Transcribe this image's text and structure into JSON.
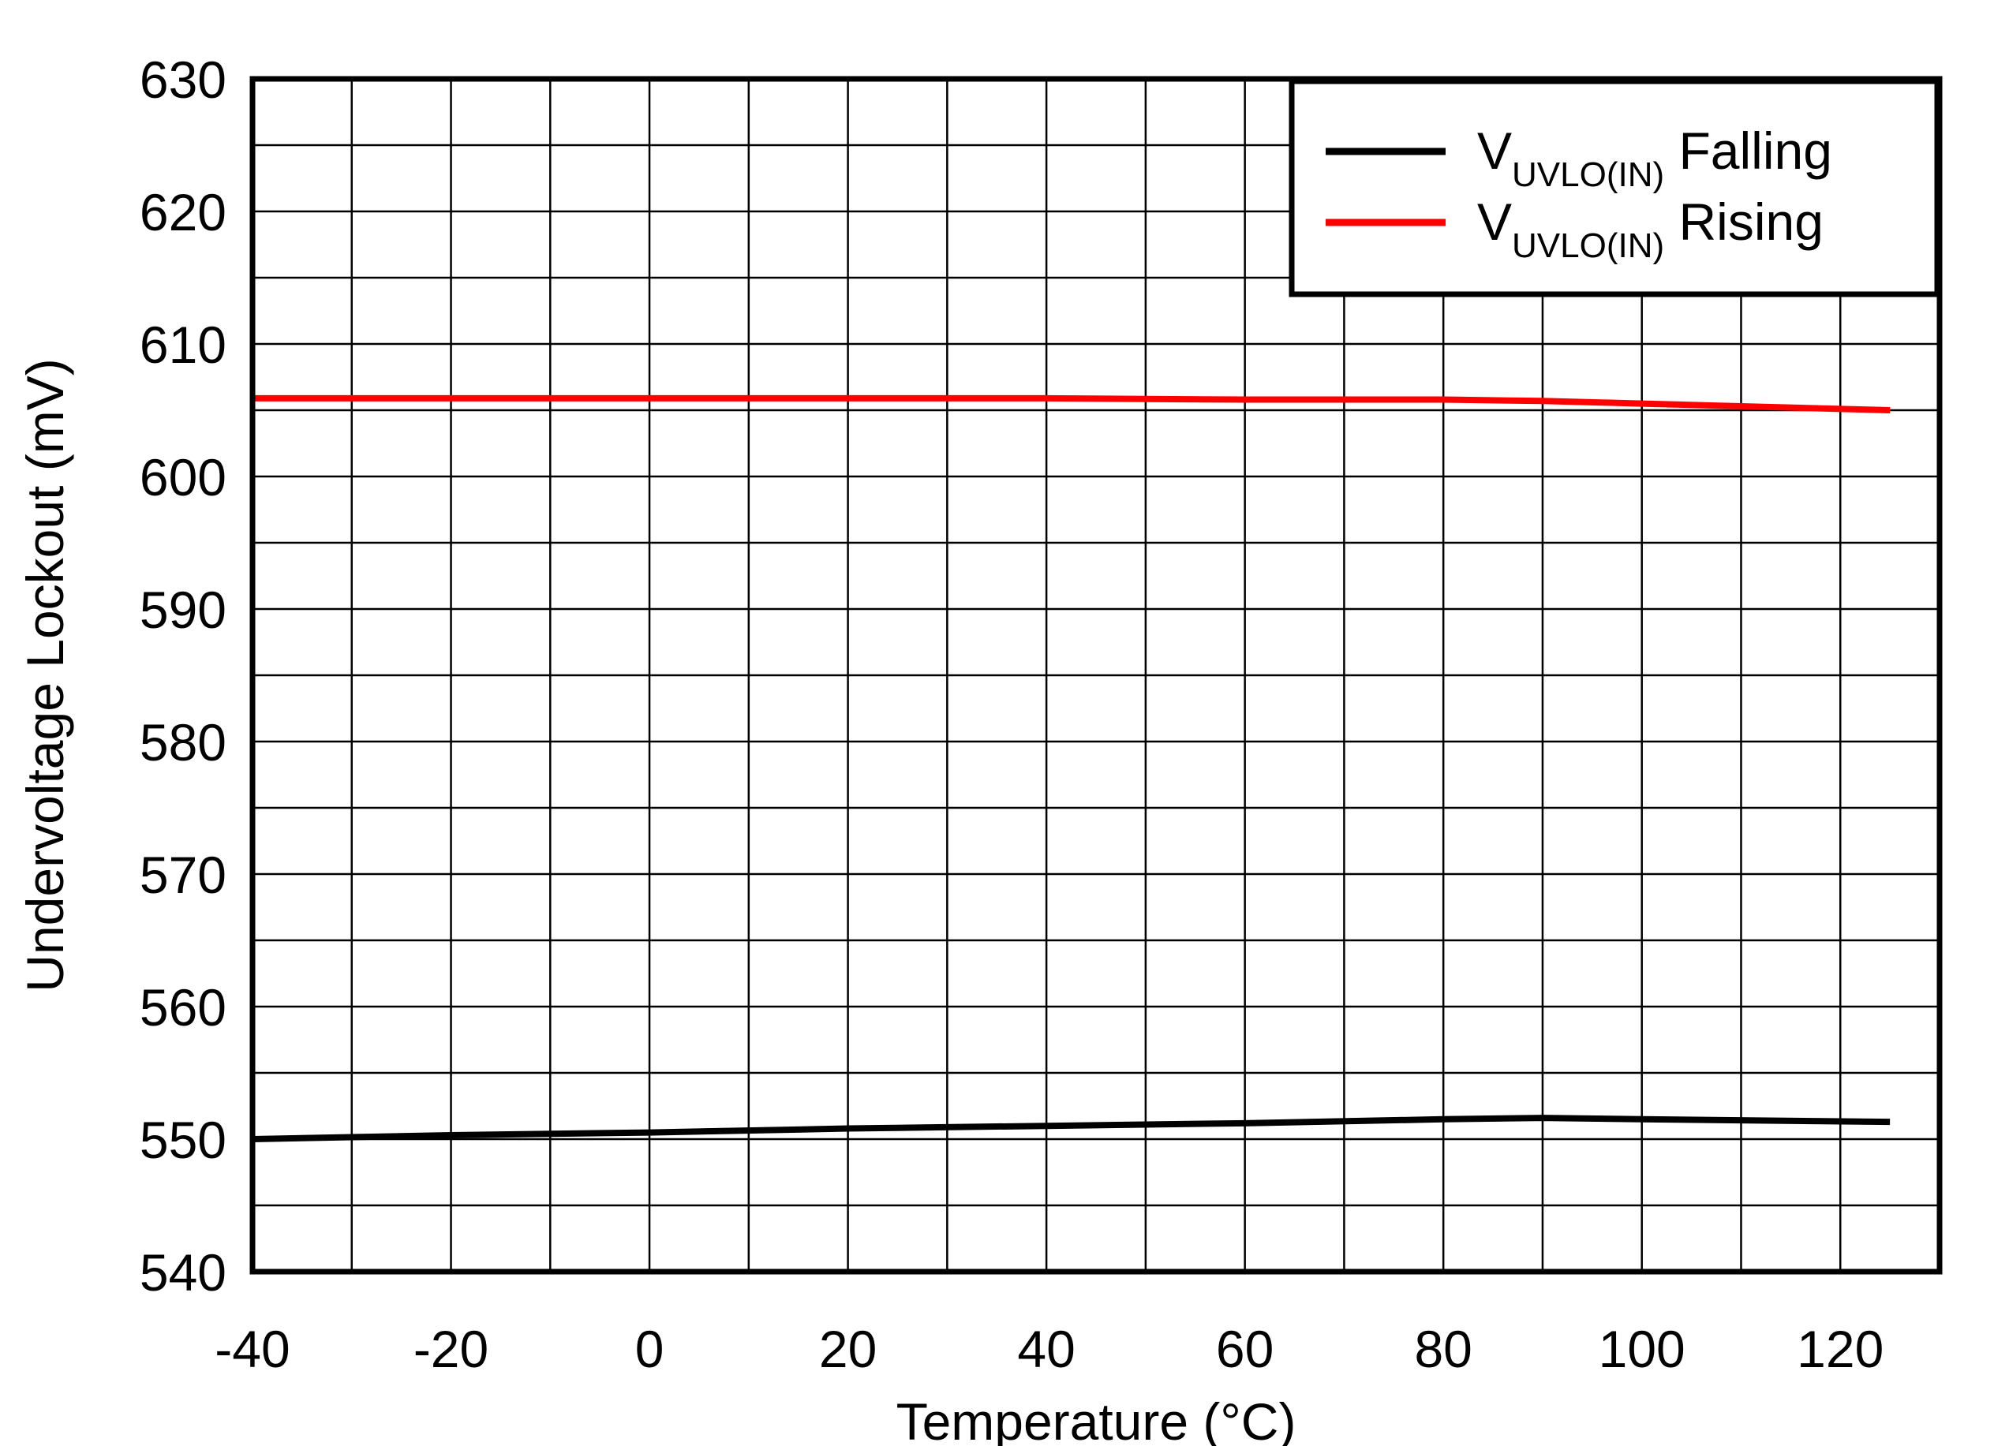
{
  "chart_data": {
    "type": "line",
    "title": "",
    "xlabel": "Temperature (°C)",
    "ylabel": "Undervoltage Lockout (mV)",
    "xlim": [
      -40,
      130
    ],
    "ylim": [
      540,
      630
    ],
    "x_ticks": [
      -40,
      -20,
      0,
      20,
      40,
      60,
      80,
      100,
      120
    ],
    "y_ticks": [
      540,
      550,
      560,
      570,
      580,
      590,
      600,
      610,
      620,
      630
    ],
    "x_tick_labels": [
      "-40",
      "-20",
      "0",
      "20",
      "40",
      "60",
      "80",
      "100",
      "120"
    ],
    "y_tick_labels": [
      "540",
      "550",
      "560",
      "570",
      "580",
      "590",
      "600",
      "610",
      "620",
      "630"
    ],
    "grid": true,
    "legend_position": "top-right",
    "series": [
      {
        "name": "V",
        "name_sub": "UVLO(IN)",
        "name_suffix": " Falling",
        "color": "#000000",
        "x": [
          -40,
          -20,
          0,
          20,
          40,
          60,
          80,
          90,
          100,
          125
        ],
        "y": [
          550.0,
          550.3,
          550.5,
          550.8,
          551.0,
          551.2,
          551.5,
          551.6,
          551.5,
          551.3
        ]
      },
      {
        "name": "V",
        "name_sub": "UVLO(IN)",
        "name_suffix": " Rising",
        "color": "#ff0000",
        "x": [
          -40,
          -20,
          0,
          20,
          40,
          60,
          80,
          90,
          100,
          125
        ],
        "y": [
          605.9,
          605.9,
          605.9,
          605.9,
          605.9,
          605.8,
          605.8,
          605.7,
          605.5,
          605.0
        ]
      }
    ]
  }
}
